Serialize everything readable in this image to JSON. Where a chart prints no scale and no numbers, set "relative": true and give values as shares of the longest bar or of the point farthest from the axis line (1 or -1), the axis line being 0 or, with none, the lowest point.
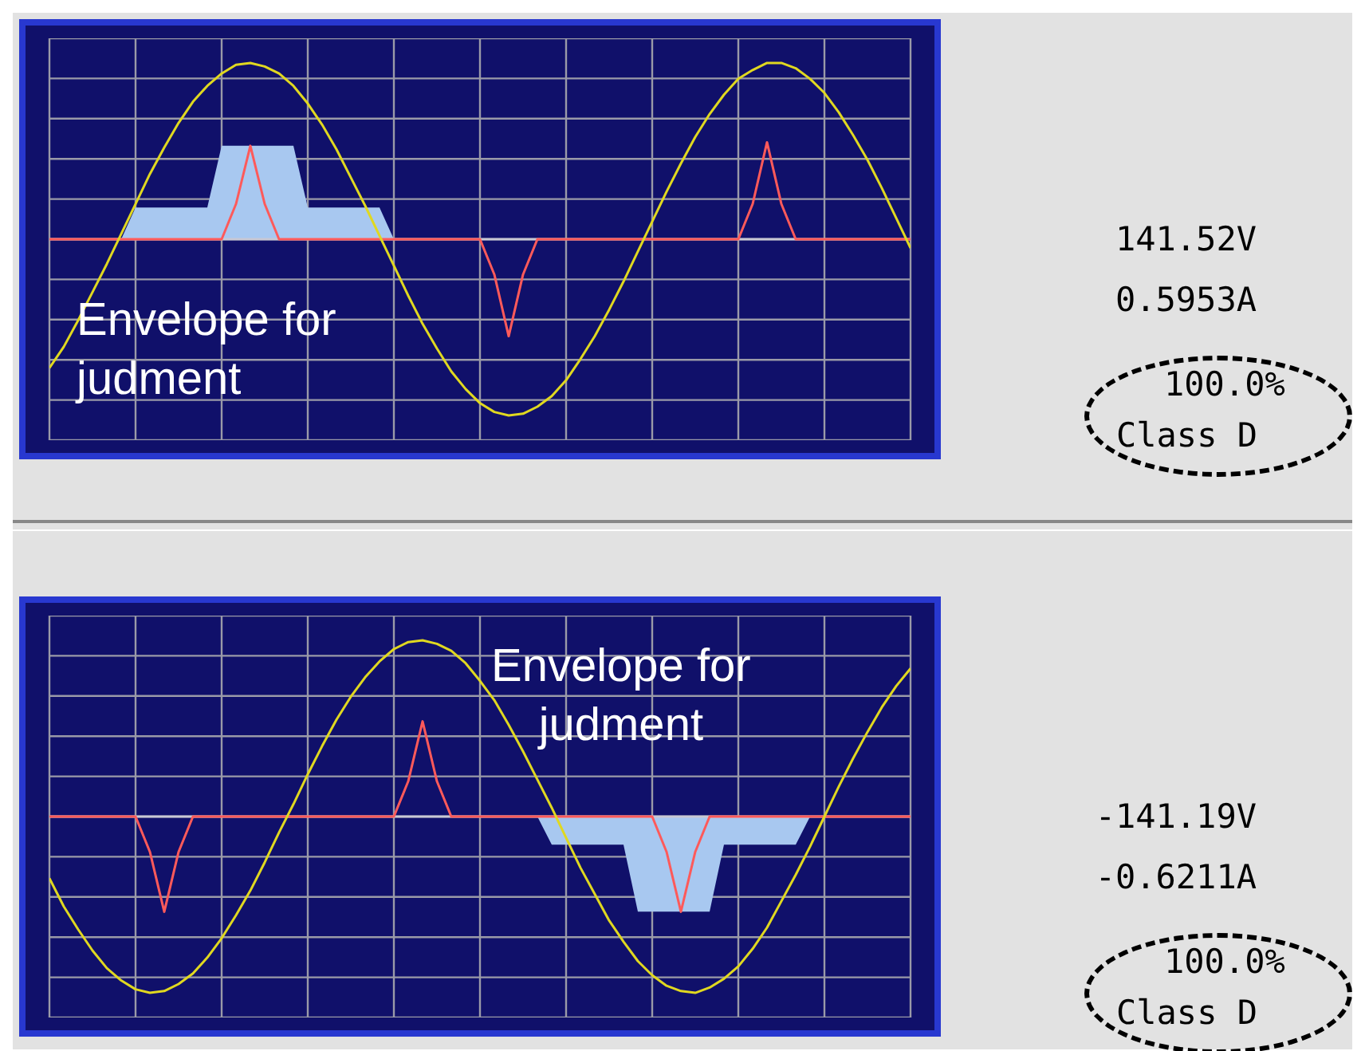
{
  "chart_data": [
    {
      "type": "line",
      "relative": true,
      "tick_labels": false,
      "grid": true,
      "legend": false,
      "marker": "none",
      "line_style": "solid",
      "categories": [
        null,
        null,
        null,
        null,
        null,
        null,
        null,
        null,
        null,
        null,
        null,
        null,
        null,
        null,
        null,
        null,
        null,
        null,
        null,
        null,
        null,
        null,
        null,
        null,
        null,
        null,
        null,
        null,
        null,
        null,
        null,
        null,
        null,
        null,
        null,
        null,
        null,
        null,
        null,
        null,
        null,
        null,
        null,
        null,
        null,
        null,
        null,
        null,
        null,
        null,
        null,
        null,
        null,
        null,
        null,
        null,
        null,
        null,
        null,
        null,
        null
      ],
      "annotations": [
        "Envelope for\njudment",
        "141.52V",
        "0.5953A",
        "100.0%",
        "Class D"
      ],
      "series": [
        {
          "type": "area",
          "color": "#a8c8f0",
          "values": [
            null,
            null,
            null,
            null,
            null,
            0,
            0.18,
            0.18,
            0.18,
            0.18,
            0.18,
            0.18,
            0.53,
            0.53,
            0.53,
            0.53,
            0.53,
            0.53,
            0.18,
            0.18,
            0.18,
            0.18,
            0.18,
            0.18,
            0,
            null,
            null,
            null,
            null,
            null,
            null,
            null,
            null,
            null,
            null,
            null,
            null,
            null,
            null,
            null,
            null,
            null,
            null,
            null,
            null,
            null,
            null,
            null,
            null,
            null,
            null,
            null,
            null,
            null,
            null,
            null,
            null,
            null,
            null,
            null,
            null
          ]
        },
        {
          "type": "line",
          "color": "#ff5a5a",
          "values": [
            0,
            0,
            0,
            0,
            0,
            0,
            0,
            0,
            0,
            0,
            0,
            0,
            0,
            0.2,
            0.53,
            0.2,
            0,
            0,
            0,
            0,
            0,
            0,
            0,
            0,
            0,
            0,
            0,
            0,
            0,
            0,
            0,
            -0.2,
            -0.55,
            -0.2,
            0,
            0,
            0,
            0,
            0,
            0,
            0,
            0,
            0,
            0,
            0,
            0,
            0,
            0,
            0,
            0.2,
            0.55,
            0.2,
            0,
            0,
            0,
            0,
            0,
            0,
            0,
            0,
            0
          ]
        },
        {
          "type": "line",
          "color": "#e0d820",
          "values": [
            -0.73,
            -0.61,
            -0.46,
            -0.3,
            -0.14,
            0.03,
            0.2,
            0.37,
            0.52,
            0.66,
            0.78,
            0.87,
            0.94,
            0.99,
            1.0,
            0.98,
            0.94,
            0.87,
            0.77,
            0.65,
            0.51,
            0.35,
            0.19,
            0.02,
            -0.15,
            -0.32,
            -0.48,
            -0.62,
            -0.75,
            -0.85,
            -0.93,
            -0.98,
            -1.0,
            -0.99,
            -0.95,
            -0.89,
            -0.8,
            -0.68,
            -0.55,
            -0.4,
            -0.24,
            -0.07,
            0.1,
            0.27,
            0.43,
            0.58,
            0.71,
            0.82,
            0.91,
            0.96,
            1.0,
            1.0,
            0.97,
            0.91,
            0.83,
            0.72,
            0.59,
            0.45,
            0.29,
            0.12,
            -0.05
          ]
        }
      ]
    },
    {
      "type": "line",
      "relative": true,
      "tick_labels": false,
      "grid": true,
      "legend": false,
      "marker": "none",
      "line_style": "solid",
      "categories": [
        null,
        null,
        null,
        null,
        null,
        null,
        null,
        null,
        null,
        null,
        null,
        null,
        null,
        null,
        null,
        null,
        null,
        null,
        null,
        null,
        null,
        null,
        null,
        null,
        null,
        null,
        null,
        null,
        null,
        null,
        null,
        null,
        null,
        null,
        null,
        null,
        null,
        null,
        null,
        null,
        null,
        null,
        null,
        null,
        null,
        null,
        null,
        null,
        null,
        null,
        null,
        null,
        null,
        null,
        null,
        null,
        null,
        null,
        null,
        null,
        null
      ],
      "annotations": [
        "Envelope for\njudment",
        "-141.19V",
        "-0.6211A",
        "100.0%",
        "Class D"
      ],
      "series": [
        {
          "type": "area",
          "color": "#a8c8f0",
          "values": [
            null,
            null,
            null,
            null,
            null,
            null,
            null,
            null,
            null,
            null,
            null,
            null,
            null,
            null,
            null,
            null,
            null,
            null,
            null,
            null,
            null,
            null,
            null,
            null,
            null,
            null,
            null,
            null,
            null,
            null,
            null,
            null,
            null,
            null,
            0,
            -0.16,
            -0.16,
            -0.16,
            -0.16,
            -0.16,
            -0.16,
            -0.54,
            -0.54,
            -0.54,
            -0.54,
            -0.54,
            -0.54,
            -0.16,
            -0.16,
            -0.16,
            -0.16,
            -0.16,
            -0.16,
            0,
            null,
            null,
            null,
            null,
            null,
            null,
            null
          ]
        },
        {
          "type": "line",
          "color": "#ff5a5a",
          "values": [
            0,
            0,
            0,
            0,
            0,
            0,
            0,
            -0.2,
            -0.54,
            -0.2,
            0,
            0,
            0,
            0,
            0,
            0,
            0,
            0,
            0,
            0,
            0,
            0,
            0,
            0,
            0,
            0.2,
            0.54,
            0.2,
            0,
            0,
            0,
            0,
            0,
            0,
            0,
            0,
            0,
            0,
            0,
            0,
            0,
            0,
            0,
            -0.2,
            -0.54,
            -0.2,
            0,
            0,
            0,
            0,
            0,
            0,
            0,
            0,
            0,
            0,
            0,
            0,
            0,
            0,
            0
          ]
        },
        {
          "type": "line",
          "color": "#e0d820",
          "values": [
            -0.35,
            -0.51,
            -0.64,
            -0.76,
            -0.86,
            -0.93,
            -0.98,
            -1.0,
            -0.99,
            -0.95,
            -0.89,
            -0.8,
            -0.69,
            -0.56,
            -0.42,
            -0.26,
            -0.09,
            0.07,
            0.24,
            0.4,
            0.55,
            0.68,
            0.79,
            0.88,
            0.95,
            0.99,
            1.0,
            0.98,
            0.94,
            0.87,
            0.77,
            0.66,
            0.52,
            0.37,
            0.21,
            0.05,
            -0.12,
            -0.29,
            -0.44,
            -0.59,
            -0.71,
            -0.82,
            -0.9,
            -0.96,
            -0.99,
            -1.0,
            -0.97,
            -0.92,
            -0.85,
            -0.75,
            -0.63,
            -0.48,
            -0.33,
            -0.17,
            0.0,
            0.17,
            0.33,
            0.48,
            0.62,
            0.74,
            0.84
          ]
        }
      ]
    }
  ]
}
